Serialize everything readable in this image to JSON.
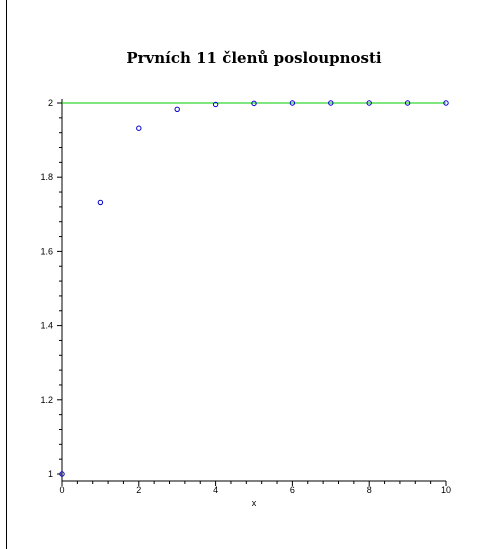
{
  "chart_data": {
    "type": "scatter",
    "title": "Prvních 11 členů posloupnosti",
    "xlabel": "x",
    "ylabel": "",
    "xlim": [
      0,
      10
    ],
    "ylim": [
      0.99,
      2.0
    ],
    "x_ticks": [
      "0",
      "2",
      "4",
      "6",
      "8",
      "10"
    ],
    "y_ticks": [
      "1",
      "1.2",
      "1.4",
      "1.6",
      "1.8",
      "2"
    ],
    "grid": false,
    "series": [
      {
        "kind": "points",
        "color": "#0000cc",
        "x": [
          0,
          1,
          2,
          3,
          4,
          5,
          6,
          7,
          8,
          9,
          10
        ],
        "y": [
          1.0,
          1.732,
          1.932,
          1.983,
          1.996,
          1.999,
          2.0,
          2.0,
          2.0,
          2.0,
          2.0
        ]
      },
      {
        "kind": "line",
        "color": "#00cc00",
        "x": [
          0,
          10
        ],
        "y": [
          2.0,
          2.0
        ]
      }
    ]
  }
}
